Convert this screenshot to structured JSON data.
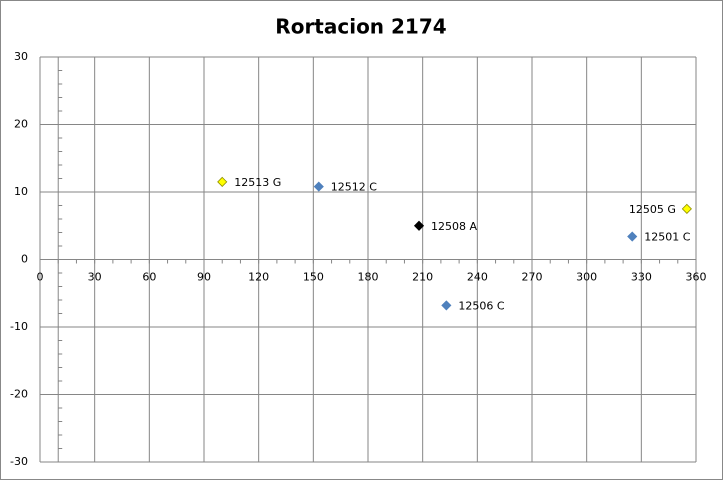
{
  "chart_data": {
    "type": "scatter",
    "title": "Rortacion 2174",
    "points": [
      {
        "label": "12513 G",
        "x": 100,
        "y": 11.5,
        "color": "#ffff00"
      },
      {
        "label": "12512 C",
        "x": 153,
        "y": 10.8,
        "color": "#4f81bd"
      },
      {
        "label": "12508 A",
        "x": 208,
        "y": 5.0,
        "color": "#000000"
      },
      {
        "label": "12506 C",
        "x": 223,
        "y": -6.8,
        "color": "#4f81bd"
      },
      {
        "label": "12505 G",
        "x": 355,
        "y": 7.5,
        "color": "#ffff00",
        "label_side": "left"
      },
      {
        "label": "12501 C",
        "x": 325,
        "y": 3.4,
        "color": "#4f81bd"
      }
    ],
    "xlim": [
      0,
      360
    ],
    "xticks": [
      0,
      30,
      60,
      90,
      120,
      150,
      180,
      210,
      240,
      270,
      300,
      330,
      360
    ],
    "ylim": [
      -30,
      30
    ],
    "yticks": [
      -30,
      -20,
      -10,
      0,
      10,
      20,
      30
    ],
    "y_axis_crosses_x": 10,
    "x_minor_step": 10,
    "y_minor_step": 2,
    "grid": true
  }
}
